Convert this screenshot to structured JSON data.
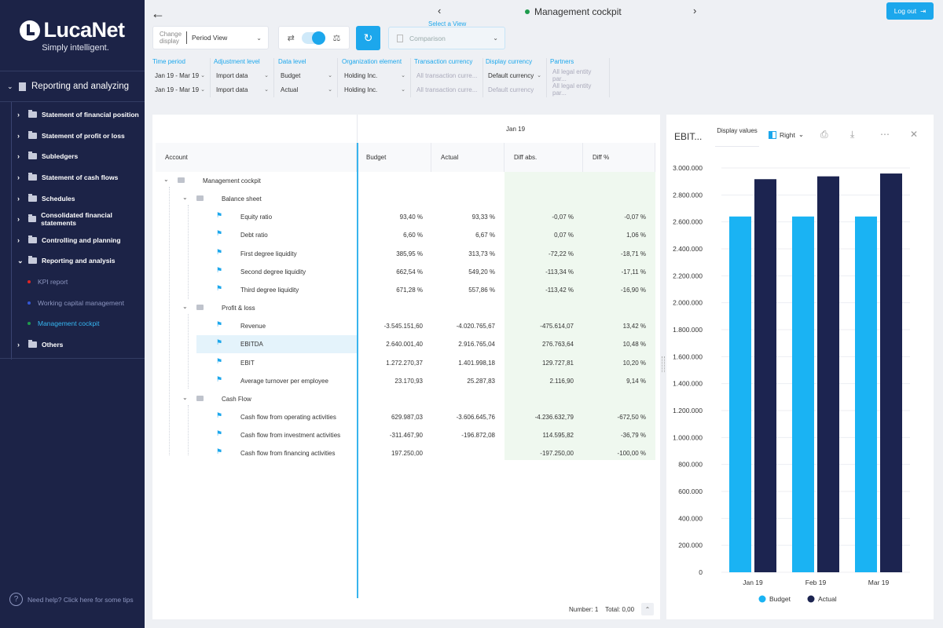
{
  "brand": {
    "name": "LucaNet",
    "tagline": "Simply intelligent."
  },
  "sidebar": {
    "section_label": "Reporting and analyzing",
    "items": [
      {
        "label": "Statement of financial position"
      },
      {
        "label": "Statement of profit or loss"
      },
      {
        "label": "Subledgers"
      },
      {
        "label": "Statement of cash flows"
      },
      {
        "label": "Schedules"
      },
      {
        "label": "Consolidated financial statements"
      },
      {
        "label": "Controlling and planning"
      },
      {
        "label": "Reporting and analysis"
      }
    ],
    "sub_items": [
      {
        "label": "KPI report",
        "color": "#e02424"
      },
      {
        "label": "Working capital management",
        "color": "#3457d5"
      },
      {
        "label": "Management cockpit",
        "color": "#1e9b4c"
      }
    ],
    "others_label": "Others",
    "help_text": "Need help? Click here for some tips"
  },
  "header": {
    "title": "Management cockpit",
    "logout_label": "Log out",
    "change_display_label": "Change display",
    "change_display_value": "Period View",
    "select_view_label": "Select a View",
    "select_view_value": "Comparison"
  },
  "filters": [
    {
      "label": "Time period",
      "values": [
        "Jan 19 - Mar 19",
        "Jan 19 - Mar 19"
      ]
    },
    {
      "label": "Adjustment level",
      "values": [
        "Import data",
        "Import data"
      ]
    },
    {
      "label": "Data level",
      "values": [
        "Budget",
        "Actual"
      ]
    },
    {
      "label": "Organization element",
      "values": [
        "Holding Inc.",
        "Holding Inc."
      ]
    },
    {
      "label": "Transaction currency",
      "values": [
        "All transaction curre...",
        "All transaction curre..."
      ]
    },
    {
      "label": "Display currency",
      "values": [
        "Default currency",
        "Default currency"
      ]
    },
    {
      "label": "Partners",
      "values": [
        "All legal entity par...",
        "All legal entity par..."
      ]
    }
  ],
  "table": {
    "period": "Jan 19",
    "columns": [
      "Account",
      "Budget",
      "Actual",
      "Diff abs.",
      "Diff %"
    ],
    "rows": [
      {
        "label": "Management cockpit",
        "level": 0,
        "type": "group"
      },
      {
        "label": "Balance sheet",
        "level": 1,
        "type": "group"
      },
      {
        "label": "Equity ratio",
        "level": 2,
        "type": "item",
        "budget": "93,40 %",
        "actual": "93,33 %",
        "diff": "-0,07 %",
        "pct": "-0,07 %"
      },
      {
        "label": "Debt ratio",
        "level": 2,
        "type": "item",
        "budget": "6,60 %",
        "actual": "6,67 %",
        "diff": "0,07 %",
        "pct": "1,06 %"
      },
      {
        "label": "First degree liquidity",
        "level": 2,
        "type": "item",
        "budget": "385,95 %",
        "actual": "313,73 %",
        "diff": "-72,22 %",
        "pct": "-18,71 %"
      },
      {
        "label": "Second degree liquidity",
        "level": 2,
        "type": "item",
        "budget": "662,54 %",
        "actual": "549,20 %",
        "diff": "-113,34 %",
        "pct": "-17,11 %"
      },
      {
        "label": "Third degree liquidity",
        "level": 2,
        "type": "item",
        "budget": "671,28 %",
        "actual": "557,86 %",
        "diff": "-113,42 %",
        "pct": "-16,90 %"
      },
      {
        "label": "Profit & loss",
        "level": 1,
        "type": "group"
      },
      {
        "label": "Revenue",
        "level": 2,
        "type": "item",
        "budget": "-3.545.151,60",
        "actual": "-4.020.765,67",
        "diff": "-475.614,07",
        "pct": "13,42 %"
      },
      {
        "label": "EBITDA",
        "level": 2,
        "type": "item",
        "selected": true,
        "budget": "2.640.001,40",
        "actual": "2.916.765,04",
        "diff": "276.763,64",
        "pct": "10,48 %"
      },
      {
        "label": "EBIT",
        "level": 2,
        "type": "item",
        "budget": "1.272.270,37",
        "actual": "1.401.998,18",
        "diff": "129.727,81",
        "pct": "10,20 %"
      },
      {
        "label": "Average turnover per employee",
        "level": 2,
        "type": "item",
        "budget": "23.170,93",
        "actual": "25.287,83",
        "diff": "2.116,90",
        "pct": "9,14 %"
      },
      {
        "label": "Cash Flow",
        "level": 1,
        "type": "group"
      },
      {
        "label": "Cash flow from operating activities",
        "level": 2,
        "type": "item",
        "budget": "629.987,03",
        "actual": "-3.606.645,76",
        "diff": "-4.236.632,79",
        "pct": "-672,50 %"
      },
      {
        "label": "Cash flow from investment activities",
        "level": 2,
        "type": "item",
        "budget": "-311.467,90",
        "actual": "-196.872,08",
        "diff": "114.595,82",
        "pct": "-36,79 %"
      },
      {
        "label": "Cash flow from financing activities",
        "level": 2,
        "type": "item",
        "budget": "197.250,00",
        "actual": "",
        "diff": "-197.250,00",
        "pct": "-100,00 %"
      }
    ],
    "footer_number": "Number: 1",
    "footer_total": "Total: 0,00"
  },
  "chart_panel": {
    "title": "EBIT...",
    "display_values_label": "Display values",
    "position_label": "Right"
  },
  "chart_data": {
    "type": "bar",
    "categories": [
      "Jan 19",
      "Feb 19",
      "Mar 19"
    ],
    "series": [
      {
        "name": "Budget",
        "color": "#1ab3f3",
        "values": [
          2640000,
          2640000,
          2640000
        ]
      },
      {
        "name": "Actual",
        "color": "#1c2450",
        "values": [
          2917000,
          2938000,
          2959000
        ]
      }
    ],
    "ylim": [
      0,
      3000000
    ],
    "yticks": [
      "0",
      "200.000",
      "400.000",
      "600.000",
      "800.000",
      "1.000.000",
      "1.200.000",
      "1.400.000",
      "1.600.000",
      "1.800.000",
      "2.000.000",
      "2.200.000",
      "2.400.000",
      "2.600.000",
      "2.800.000",
      "3.000.000"
    ],
    "grid": true,
    "legend": "bottom"
  }
}
